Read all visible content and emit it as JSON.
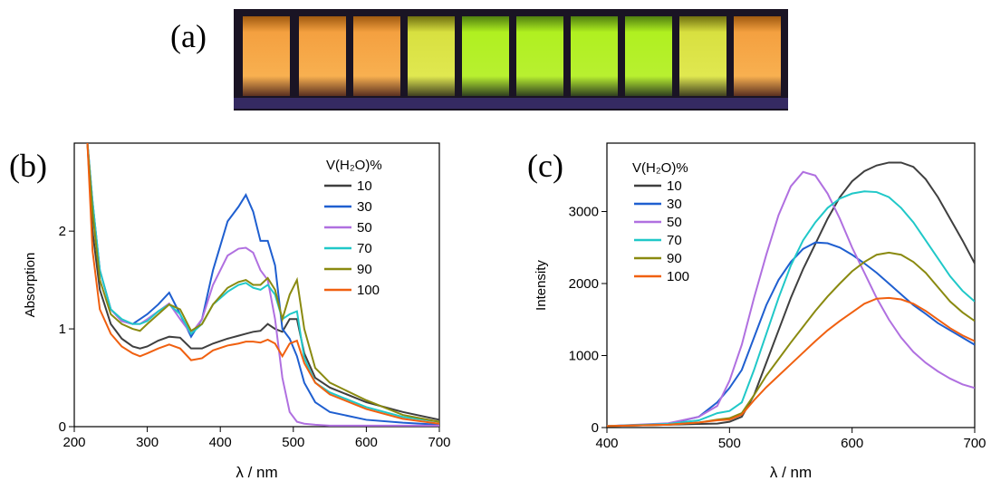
{
  "photo": {
    "label": "(a)"
  },
  "chart_data": [
    {
      "type": "line",
      "panel_label": "(b)",
      "x_label": "λ / nm",
      "y_label": "Absorption",
      "legend_title": "V(H₂O)%",
      "legend_position": "upper right",
      "xlim": [
        200,
        700
      ],
      "xticks": [
        200,
        300,
        400,
        500,
        600,
        700
      ],
      "ylim": [
        0,
        2.9
      ],
      "yticks": [
        0,
        1,
        2
      ],
      "x": [
        218,
        225,
        235,
        250,
        265,
        280,
        290,
        300,
        315,
        330,
        345,
        360,
        375,
        390,
        410,
        425,
        435,
        445,
        455,
        465,
        475,
        485,
        495,
        505,
        515,
        530,
        550,
        600,
        650,
        700
      ],
      "series": [
        {
          "name": "10",
          "color": "#3f3f3f",
          "values": [
            2.9,
            2.0,
            1.4,
            1.05,
            0.9,
            0.82,
            0.8,
            0.82,
            0.88,
            0.92,
            0.91,
            0.8,
            0.8,
            0.85,
            0.9,
            0.93,
            0.95,
            0.97,
            0.98,
            1.05,
            1.0,
            0.97,
            1.1,
            1.1,
            0.75,
            0.5,
            0.4,
            0.25,
            0.15,
            0.07
          ]
        },
        {
          "name": "30",
          "color": "#1f5fd0",
          "values": [
            2.9,
            2.3,
            1.6,
            1.2,
            1.08,
            1.05,
            1.1,
            1.15,
            1.25,
            1.37,
            1.15,
            0.92,
            1.1,
            1.6,
            2.1,
            2.25,
            2.37,
            2.2,
            1.9,
            1.9,
            1.65,
            1.0,
            0.9,
            0.72,
            0.45,
            0.25,
            0.15,
            0.07,
            0.04,
            0.02
          ]
        },
        {
          "name": "50",
          "color": "#b070e0",
          "values": [
            2.9,
            2.3,
            1.6,
            1.2,
            1.08,
            1.05,
            1.05,
            1.1,
            1.18,
            1.26,
            1.1,
            0.95,
            1.1,
            1.45,
            1.75,
            1.82,
            1.83,
            1.78,
            1.6,
            1.5,
            1.1,
            0.5,
            0.15,
            0.05,
            0.03,
            0.02,
            0.01,
            0.01,
            0.01,
            0.01
          ]
        },
        {
          "name": "70",
          "color": "#20c8c8",
          "values": [
            2.9,
            2.3,
            1.6,
            1.2,
            1.1,
            1.05,
            1.05,
            1.08,
            1.18,
            1.25,
            1.15,
            0.95,
            1.05,
            1.25,
            1.38,
            1.45,
            1.47,
            1.42,
            1.4,
            1.45,
            1.35,
            1.1,
            1.15,
            1.18,
            0.7,
            0.45,
            0.35,
            0.2,
            0.1,
            0.05
          ]
        },
        {
          "name": "90",
          "color": "#8a8a10",
          "values": [
            2.9,
            2.2,
            1.5,
            1.15,
            1.05,
            1.0,
            0.98,
            1.05,
            1.15,
            1.25,
            1.2,
            0.98,
            1.05,
            1.25,
            1.42,
            1.48,
            1.5,
            1.45,
            1.45,
            1.52,
            1.4,
            1.1,
            1.35,
            1.5,
            1.0,
            0.6,
            0.45,
            0.27,
            0.12,
            0.05
          ]
        },
        {
          "name": "100",
          "color": "#f06010",
          "values": [
            2.9,
            1.8,
            1.2,
            0.95,
            0.82,
            0.75,
            0.72,
            0.75,
            0.8,
            0.84,
            0.8,
            0.68,
            0.7,
            0.78,
            0.83,
            0.85,
            0.87,
            0.87,
            0.86,
            0.89,
            0.85,
            0.72,
            0.85,
            0.88,
            0.65,
            0.45,
            0.33,
            0.18,
            0.08,
            0.03
          ]
        }
      ]
    },
    {
      "type": "line",
      "panel_label": "(c)",
      "x_label": "λ / nm",
      "y_label": "Intensity",
      "legend_title": "V(H₂O)%",
      "legend_position": "upper left",
      "xlim": [
        400,
        700
      ],
      "xticks": [
        400,
        500,
        600,
        700
      ],
      "ylim": [
        0,
        3950
      ],
      "yticks": [
        0,
        1000,
        2000,
        3000
      ],
      "x": [
        400,
        450,
        475,
        490,
        500,
        510,
        520,
        530,
        540,
        550,
        560,
        570,
        580,
        590,
        600,
        610,
        620,
        630,
        640,
        650,
        660,
        670,
        680,
        690,
        700
      ],
      "series": [
        {
          "name": "10",
          "color": "#3f3f3f",
          "values": [
            20,
            40,
            50,
            55,
            80,
            150,
            450,
            900,
            1350,
            1800,
            2200,
            2550,
            2900,
            3200,
            3420,
            3560,
            3640,
            3680,
            3680,
            3620,
            3450,
            3200,
            2900,
            2600,
            2280
          ]
        },
        {
          "name": "30",
          "color": "#1f5fd0",
          "values": [
            20,
            50,
            150,
            350,
            550,
            800,
            1250,
            1700,
            2050,
            2300,
            2480,
            2570,
            2560,
            2500,
            2400,
            2280,
            2150,
            2000,
            1850,
            1700,
            1580,
            1450,
            1350,
            1250,
            1150
          ]
        },
        {
          "name": "50",
          "color": "#b070e0",
          "values": [
            20,
            60,
            150,
            300,
            650,
            1150,
            1800,
            2400,
            2950,
            3350,
            3550,
            3500,
            3250,
            2900,
            2500,
            2150,
            1800,
            1500,
            1250,
            1050,
            900,
            780,
            680,
            600,
            550
          ]
        },
        {
          "name": "70",
          "color": "#20c8c8",
          "values": [
            20,
            50,
            100,
            200,
            230,
            350,
            800,
            1300,
            1800,
            2250,
            2600,
            2850,
            3050,
            3180,
            3250,
            3280,
            3270,
            3200,
            3050,
            2850,
            2600,
            2350,
            2100,
            1900,
            1750
          ]
        },
        {
          "name": "90",
          "color": "#8a8a10",
          "values": [
            20,
            40,
            70,
            110,
            130,
            200,
            450,
            720,
            950,
            1180,
            1400,
            1620,
            1820,
            2000,
            2170,
            2300,
            2400,
            2430,
            2400,
            2300,
            2150,
            1950,
            1750,
            1600,
            1480
          ]
        },
        {
          "name": "100",
          "color": "#f06010",
          "values": [
            20,
            40,
            70,
            100,
            110,
            180,
            380,
            560,
            720,
            880,
            1040,
            1200,
            1350,
            1480,
            1600,
            1720,
            1790,
            1800,
            1780,
            1720,
            1620,
            1500,
            1380,
            1280,
            1200
          ]
        }
      ]
    }
  ]
}
